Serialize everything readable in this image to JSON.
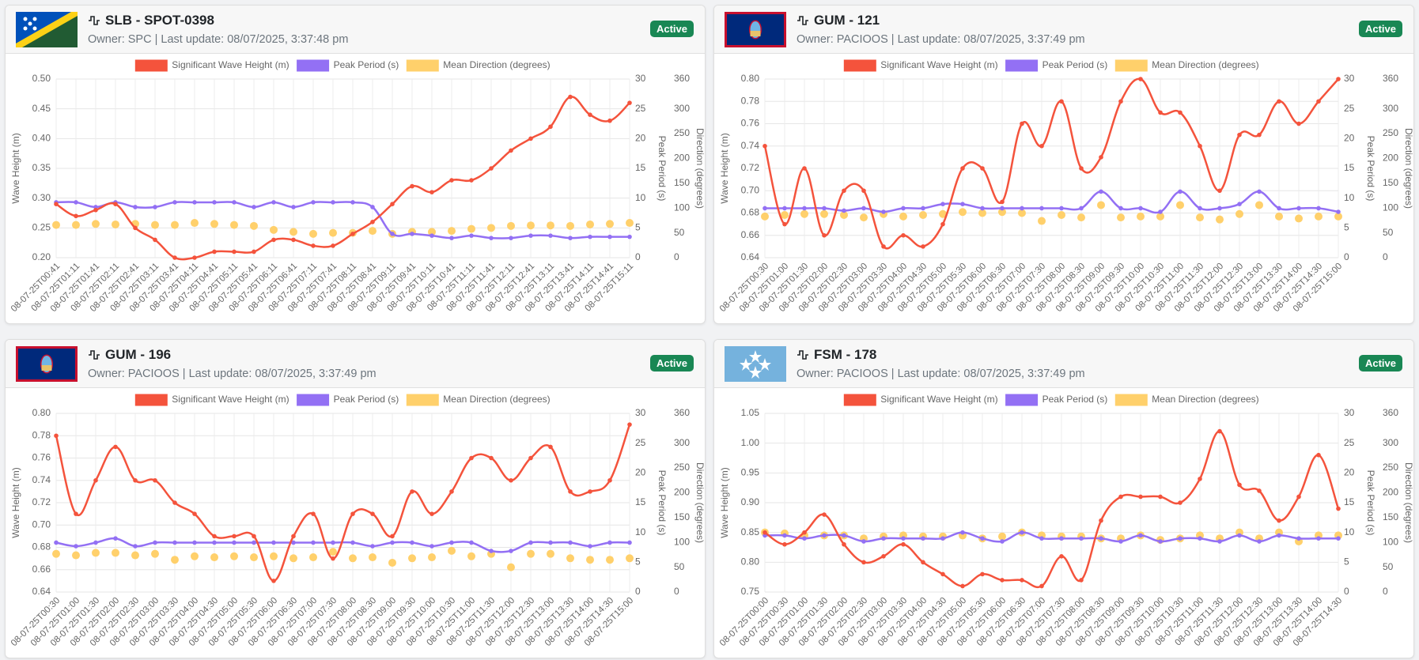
{
  "cards": [
    {
      "title": "SLB - SPOT-0398",
      "owner": "Owner: SPC | Last update: 08/07/2025, 3:37:48 pm",
      "status": "Active",
      "chart": {
        "type": "line",
        "grid": true,
        "categories": [
          "08-07-25T00:41",
          "08-07-25T01:11",
          "08-07-25T01:41",
          "08-07-25T02:11",
          "08-07-25T02:41",
          "08-07-25T03:11",
          "08-07-25T03:41",
          "08-07-25T04:11",
          "08-07-25T04:41",
          "08-07-25T05:11",
          "08-07-25T05:41",
          "08-07-25T06:11",
          "08-07-25T06:41",
          "08-07-25T07:11",
          "08-07-25T07:41",
          "08-07-25T08:11",
          "08-07-25T08:41",
          "08-07-25T09:11",
          "08-07-25T09:41",
          "08-07-25T10:11",
          "08-07-25T10:41",
          "08-07-25T11:11",
          "08-07-25T11:41",
          "08-07-25T12:11",
          "08-07-25T12:41",
          "08-07-25T13:11",
          "08-07-25T13:41",
          "08-07-25T14:11",
          "08-07-25T14:41",
          "08-07-25T15:11"
        ],
        "series": [
          {
            "name": "Significant Wave Height (m)",
            "color": "#f4533c",
            "axis": "y",
            "type": "line",
            "values": [
              0.29,
              0.27,
              0.28,
              0.29,
              0.25,
              0.23,
              0.2,
              0.2,
              0.21,
              0.21,
              0.21,
              0.23,
              0.23,
              0.22,
              0.22,
              0.24,
              0.26,
              0.29,
              0.32,
              0.31,
              0.33,
              0.33,
              0.35,
              0.38,
              0.4,
              0.42,
              0.47,
              0.44,
              0.43,
              0.46
            ]
          },
          {
            "name": "Peak Period (s)",
            "color": "#9370f4",
            "axis": "y2",
            "type": "line",
            "values": [
              9.3,
              9.3,
              8.5,
              9.3,
              8.5,
              8.5,
              9.3,
              9.3,
              9.3,
              9.3,
              8.5,
              9.3,
              8.5,
              9.3,
              9.3,
              9.3,
              8.5,
              4,
              4,
              3.7,
              3.3,
              3.7,
              3.3,
              3.3,
              3.7,
              3.7,
              3.3,
              3.5,
              3.5,
              3.5
            ]
          },
          {
            "name": "Mean Direction (degrees)",
            "color": "#ffd06b",
            "axis": "y3",
            "type": "scatter",
            "values": [
              66,
              66,
              68,
              67,
              68,
              66,
              66,
              70,
              68,
              66,
              64,
              56,
              52,
              48,
              50,
              50,
              54,
              48,
              52,
              52,
              54,
              58,
              60,
              64,
              65,
              65,
              64,
              67,
              68,
              70
            ]
          }
        ],
        "ylabel": "Wave Height (m)",
        "ylim": [
          0.2,
          0.5
        ],
        "yticks": [
          {
            "value": 0.2,
            "label": "0.20"
          },
          {
            "value": 0.25,
            "label": "0.25"
          },
          {
            "value": 0.3,
            "label": "0.30"
          },
          {
            "value": 0.35,
            "label": "0.35"
          },
          {
            "value": 0.4,
            "label": "0.40"
          },
          {
            "value": 0.45,
            "label": "0.45"
          },
          {
            "value": 0.5,
            "label": "0.50"
          }
        ],
        "y2label": "Peak Period (s)",
        "y2lim": [
          0,
          30
        ],
        "y2ticks": [
          0,
          5,
          10,
          15,
          20,
          25,
          30
        ],
        "y3label": "Direction (degrees)",
        "y3lim": [
          0,
          360
        ],
        "y3ticks": [
          0,
          50,
          100,
          150,
          200,
          250,
          300,
          360
        ]
      }
    },
    {
      "title": "GUM - 121",
      "owner": "Owner: PACIOOS | Last update: 08/07/2025, 3:37:49 pm",
      "status": "Active",
      "chart": {
        "type": "line",
        "grid": true,
        "categories": [
          "08-07-25T00:30",
          "08-07-25T01:00",
          "08-07-25T01:30",
          "08-07-25T02:00",
          "08-07-25T02:30",
          "08-07-25T03:00",
          "08-07-25T03:30",
          "08-07-25T04:00",
          "08-07-25T04:30",
          "08-07-25T05:00",
          "08-07-25T05:30",
          "08-07-25T06:00",
          "08-07-25T06:30",
          "08-07-25T07:00",
          "08-07-25T07:30",
          "08-07-25T08:00",
          "08-07-25T08:30",
          "08-07-25T09:00",
          "08-07-25T09:30",
          "08-07-25T10:00",
          "08-07-25T10:30",
          "08-07-25T11:00",
          "08-07-25T11:30",
          "08-07-25T12:00",
          "08-07-25T12:30",
          "08-07-25T13:00",
          "08-07-25T13:30",
          "08-07-25T14:00",
          "08-07-25T14:30",
          "08-07-25T15:00"
        ],
        "series": [
          {
            "name": "Significant Wave Height (m)",
            "color": "#f4533c",
            "axis": "y",
            "type": "line",
            "values": [
              0.74,
              0.67,
              0.72,
              0.66,
              0.7,
              0.7,
              0.65,
              0.66,
              0.65,
              0.67,
              0.72,
              0.72,
              0.69,
              0.76,
              0.74,
              0.78,
              0.72,
              0.73,
              0.78,
              0.8,
              0.77,
              0.77,
              0.74,
              0.7,
              0.75,
              0.75,
              0.78,
              0.76,
              0.78,
              0.8
            ]
          },
          {
            "name": "Peak Period (s)",
            "color": "#9370f4",
            "axis": "y2",
            "type": "line",
            "values": [
              8.3,
              8.3,
              8.3,
              8.3,
              7.9,
              8.3,
              7.7,
              8.3,
              8.3,
              9,
              9,
              8.3,
              8.3,
              8.3,
              8.3,
              8.3,
              8.3,
              11.1,
              8.3,
              8.3,
              7.7,
              11.1,
              8.3,
              8.3,
              9,
              11.1,
              8.3,
              8.3,
              8.3,
              7.7
            ]
          },
          {
            "name": "Mean Direction (degrees)",
            "color": "#ffd06b",
            "axis": "y3",
            "type": "scatter",
            "values": [
              83,
              86,
              88,
              88,
              86,
              81,
              88,
              83,
              86,
              88,
              92,
              90,
              92,
              90,
              74,
              86,
              81,
              106,
              81,
              83,
              83,
              106,
              81,
              77,
              88,
              106,
              83,
              79,
              83,
              83
            ]
          }
        ],
        "ylabel": "Wave Height (m)",
        "ylim": [
          0.64,
          0.8
        ],
        "yticks": [
          {
            "value": 0.64,
            "label": "0.64"
          },
          {
            "value": 0.66,
            "label": "0.66"
          },
          {
            "value": 0.68,
            "label": "0.68"
          },
          {
            "value": 0.7,
            "label": "0.70"
          },
          {
            "value": 0.72,
            "label": "0.72"
          },
          {
            "value": 0.74,
            "label": "0.74"
          },
          {
            "value": 0.76,
            "label": "0.76"
          },
          {
            "value": 0.78,
            "label": "0.78"
          },
          {
            "value": 0.8,
            "label": "0.80"
          }
        ],
        "y2label": "Peak Period (s)",
        "y2lim": [
          0,
          30
        ],
        "y2ticks": [
          0,
          5,
          10,
          15,
          20,
          25,
          30
        ],
        "y3label": "Direction (degrees)",
        "y3lim": [
          0,
          360
        ],
        "y3ticks": [
          0,
          50,
          100,
          150,
          200,
          250,
          300,
          360
        ]
      }
    },
    {
      "title": "GUM - 196",
      "owner": "Owner: PACIOOS | Last update: 08/07/2025, 3:37:49 pm",
      "status": "Active",
      "chart": {
        "type": "line",
        "grid": true,
        "categories": [
          "08-07-25T00:30",
          "08-07-25T01:00",
          "08-07-25T01:30",
          "08-07-25T02:00",
          "08-07-25T02:30",
          "08-07-25T03:00",
          "08-07-25T03:30",
          "08-07-25T04:00",
          "08-07-25T04:30",
          "08-07-25T05:00",
          "08-07-25T05:30",
          "08-07-25T06:00",
          "08-07-25T06:30",
          "08-07-25T07:00",
          "08-07-25T07:30",
          "08-07-25T08:00",
          "08-07-25T08:30",
          "08-07-25T09:00",
          "08-07-25T09:30",
          "08-07-25T10:00",
          "08-07-25T10:30",
          "08-07-25T11:00",
          "08-07-25T11:30",
          "08-07-25T12:00",
          "08-07-25T12:30",
          "08-07-25T13:00",
          "08-07-25T13:30",
          "08-07-25T14:00",
          "08-07-25T14:30",
          "08-07-25T15:00"
        ],
        "series": [
          {
            "name": "Significant Wave Height (m)",
            "color": "#f4533c",
            "axis": "y",
            "type": "line",
            "values": [
              0.78,
              0.71,
              0.74,
              0.77,
              0.74,
              0.74,
              0.72,
              0.71,
              0.69,
              0.69,
              0.69,
              0.65,
              0.69,
              0.71,
              0.67,
              0.71,
              0.71,
              0.69,
              0.73,
              0.71,
              0.73,
              0.76,
              0.76,
              0.74,
              0.76,
              0.77,
              0.73,
              0.73,
              0.74,
              0.79
            ]
          },
          {
            "name": "Peak Period (s)",
            "color": "#9370f4",
            "axis": "y2",
            "type": "line",
            "values": [
              8.3,
              7.7,
              8.3,
              9,
              7.7,
              8.3,
              8.3,
              8.3,
              8.3,
              8.3,
              8.3,
              8.3,
              8.3,
              8.3,
              8.3,
              8.3,
              7.7,
              8.3,
              8.3,
              7.7,
              8.3,
              8.3,
              6.9,
              6.9,
              8.3,
              8.3,
              8.3,
              7.7,
              8.3,
              8.3
            ]
          },
          {
            "name": "Mean Direction (degrees)",
            "color": "#ffd06b",
            "axis": "y3",
            "type": "scatter",
            "values": [
              77,
              74,
              79,
              79,
              74,
              77,
              65,
              72,
              70,
              72,
              70,
              72,
              68,
              70,
              81,
              68,
              70,
              59,
              68,
              70,
              83,
              72,
              77,
              50,
              77,
              77,
              68,
              65,
              65,
              68
            ]
          }
        ],
        "ylabel": "Wave Height (m)",
        "ylim": [
          0.64,
          0.8
        ],
        "yticks": [
          {
            "value": 0.64,
            "label": "0.64"
          },
          {
            "value": 0.66,
            "label": "0.66"
          },
          {
            "value": 0.68,
            "label": "0.68"
          },
          {
            "value": 0.7,
            "label": "0.70"
          },
          {
            "value": 0.72,
            "label": "0.72"
          },
          {
            "value": 0.74,
            "label": "0.74"
          },
          {
            "value": 0.76,
            "label": "0.76"
          },
          {
            "value": 0.78,
            "label": "0.78"
          },
          {
            "value": 0.8,
            "label": "0.80"
          }
        ],
        "y2label": "Peak Period (s)",
        "y2lim": [
          0,
          30
        ],
        "y2ticks": [
          0,
          5,
          10,
          15,
          20,
          25,
          30
        ],
        "y3label": "Direction (degrees)",
        "y3lim": [
          0,
          360
        ],
        "y3ticks": [
          0,
          50,
          100,
          150,
          200,
          250,
          300,
          360
        ]
      }
    },
    {
      "title": "FSM - 178",
      "owner": "Owner: PACIOOS | Last update: 08/07/2025, 3:37:49 pm",
      "status": "Active",
      "chart": {
        "type": "line",
        "grid": true,
        "categories": [
          "08-07-25T00:00",
          "08-07-25T00:30",
          "08-07-25T01:00",
          "08-07-25T01:30",
          "08-07-25T02:00",
          "08-07-25T02:30",
          "08-07-25T03:00",
          "08-07-25T03:30",
          "08-07-25T04:00",
          "08-07-25T04:30",
          "08-07-25T05:00",
          "08-07-25T05:30",
          "08-07-25T06:00",
          "08-07-25T06:30",
          "08-07-25T07:00",
          "08-07-25T07:30",
          "08-07-25T08:00",
          "08-07-25T08:30",
          "08-07-25T09:00",
          "08-07-25T09:30",
          "08-07-25T10:00",
          "08-07-25T10:30",
          "08-07-25T11:00",
          "08-07-25T11:30",
          "08-07-25T12:00",
          "08-07-25T12:30",
          "08-07-25T13:00",
          "08-07-25T13:30",
          "08-07-25T14:00",
          "08-07-25T14:30"
        ],
        "series": [
          {
            "name": "Significant Wave Height (m)",
            "color": "#f4533c",
            "axis": "y",
            "type": "line",
            "values": [
              0.85,
              0.83,
              0.85,
              0.88,
              0.83,
              0.8,
              0.81,
              0.83,
              0.8,
              0.78,
              0.76,
              0.78,
              0.77,
              0.77,
              0.76,
              0.81,
              0.77,
              0.87,
              0.91,
              0.91,
              0.91,
              0.9,
              0.94,
              1.02,
              0.93,
              0.92,
              0.87,
              0.91,
              0.98,
              0.89
            ]
          },
          {
            "name": "Peak Period (s)",
            "color": "#9370f4",
            "axis": "y2",
            "type": "line",
            "values": [
              9.5,
              9.5,
              9,
              9.5,
              9.5,
              8.5,
              9,
              9,
              9,
              9,
              10,
              9,
              8.5,
              10,
              9,
              9,
              9,
              9,
              8.5,
              9.5,
              8.5,
              9,
              9,
              8.5,
              9.5,
              8.5,
              9.5,
              9,
              9,
              9
            ]
          },
          {
            "name": "Mean Direction (degrees)",
            "color": "#ffd06b",
            "axis": "y3",
            "type": "scatter",
            "values": [
              120,
              118,
              114,
              114,
              114,
              108,
              112,
              114,
              112,
              112,
              114,
              108,
              112,
              120,
              114,
              112,
              112,
              108,
              108,
              114,
              105,
              108,
              114,
              108,
              120,
              108,
              120,
              102,
              114,
              114
            ]
          }
        ],
        "ylabel": "Wave Height (m)",
        "ylim": [
          0.75,
          1.05
        ],
        "yticks": [
          {
            "value": 0.75,
            "label": "0.75"
          },
          {
            "value": 0.8,
            "label": "0.80"
          },
          {
            "value": 0.85,
            "label": "0.85"
          },
          {
            "value": 0.9,
            "label": "0.90"
          },
          {
            "value": 0.95,
            "label": "0.95"
          },
          {
            "value": 1,
            "label": "1.00"
          },
          {
            "value": 1.05,
            "label": "1.05"
          }
        ],
        "y2label": "Peak Period (s)",
        "y2lim": [
          0,
          30
        ],
        "y2ticks": [
          0,
          5,
          10,
          15,
          20,
          25,
          30
        ],
        "y3label": "Direction (degrees)",
        "y3lim": [
          0,
          360
        ],
        "y3ticks": [
          0,
          50,
          100,
          150,
          200,
          250,
          300,
          360
        ]
      }
    }
  ]
}
